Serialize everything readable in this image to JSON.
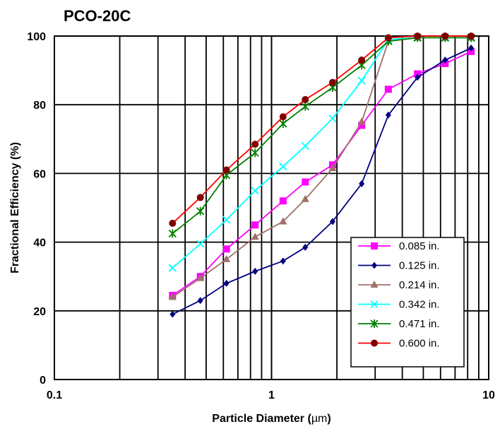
{
  "chart_data": {
    "type": "line",
    "title": "PCO-20C",
    "xlabel_prefix": "Particle Diameter (",
    "xlabel_unit": "µm",
    "xlabel_suffix": ")",
    "ylabel": "Fractional Efficiency (%)",
    "x_scale": "log",
    "xlim": [
      0.1,
      10
    ],
    "ylim": [
      0,
      100
    ],
    "x_ticks": [
      "0.1",
      "1",
      "10"
    ],
    "y_ticks": [
      "0",
      "20",
      "40",
      "60",
      "80",
      "100"
    ],
    "grid": true,
    "legend_position": "bottom-right",
    "series": [
      {
        "name": "0.085 in.",
        "color": "#ff00ff",
        "marker": "square",
        "x": [
          0.35,
          0.47,
          0.62,
          0.84,
          1.13,
          1.43,
          1.91,
          2.6,
          3.45,
          4.7,
          6.3,
          8.3
        ],
        "y": [
          24.5,
          30,
          38,
          45,
          52,
          57.5,
          62.5,
          74,
          84.5,
          89,
          92,
          95.5
        ]
      },
      {
        "name": "0.125 in.",
        "color": "#000080",
        "marker": "diamond",
        "x": [
          0.35,
          0.47,
          0.62,
          0.84,
          1.13,
          1.43,
          1.91,
          2.6,
          3.45,
          4.7,
          6.3,
          8.3
        ],
        "y": [
          19,
          23,
          28,
          31.5,
          34.5,
          38.5,
          46,
          57,
          77,
          88,
          93,
          96.5
        ]
      },
      {
        "name": "0.214 in.",
        "color": "#a0706a",
        "marker": "triangle",
        "x": [
          0.35,
          0.47,
          0.62,
          0.84,
          1.13,
          1.43,
          1.91,
          2.6,
          3.45,
          4.7,
          6.3,
          8.3
        ],
        "y": [
          24,
          29.5,
          35,
          41.5,
          46,
          52.5,
          61.5,
          75,
          98.5,
          99.5,
          99.5,
          99.5
        ]
      },
      {
        "name": "0.342 in.",
        "color": "#00ffff",
        "marker": "x",
        "x": [
          0.35,
          0.47,
          0.62,
          0.84,
          1.13,
          1.43,
          1.91,
          2.6,
          3.45,
          4.7,
          6.3,
          8.3
        ],
        "y": [
          32.5,
          39.5,
          46.5,
          55,
          62,
          68,
          76,
          87,
          99,
          99.5,
          99.5,
          99.5
        ]
      },
      {
        "name": "0.471 in.",
        "color": "#008000",
        "marker": "star",
        "x": [
          0.35,
          0.47,
          0.62,
          0.84,
          1.13,
          1.43,
          1.91,
          2.6,
          3.45,
          4.7,
          6.3,
          8.3
        ],
        "y": [
          42.5,
          49,
          59.5,
          66,
          74.5,
          79.5,
          85,
          91.5,
          98.5,
          99.5,
          99.5,
          99.5
        ]
      },
      {
        "name": "0.600 in.",
        "color": "#ff0000",
        "marker_color": "#800000",
        "marker": "circle",
        "x": [
          0.35,
          0.47,
          0.62,
          0.84,
          1.13,
          1.43,
          1.91,
          2.6,
          3.45,
          4.7,
          6.3,
          8.3
        ],
        "y": [
          45.5,
          53,
          61,
          68.5,
          76.5,
          81.5,
          86.5,
          93,
          99.5,
          100,
          100,
          100
        ]
      }
    ]
  }
}
